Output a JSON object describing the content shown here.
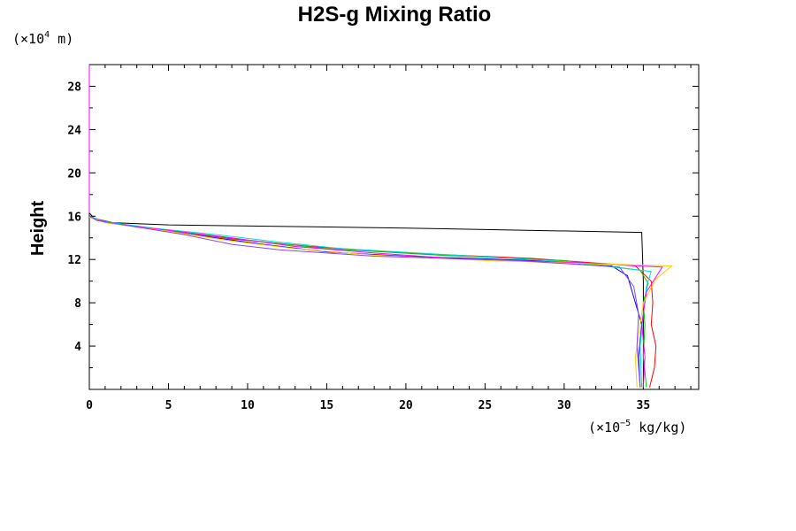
{
  "chart_data": {
    "type": "line",
    "title": "H2S-g Mixing Ratio",
    "ylabel": "Height",
    "y_unit": {
      "prefix": "(×10",
      "exponent": "4",
      "suffix": " m)"
    },
    "x_unit": {
      "prefix": "(×10",
      "exponent": "−5",
      "suffix": " kg/kg)"
    },
    "xlim": [
      0,
      38.5
    ],
    "ylim": [
      0,
      30
    ],
    "x_ticks": [
      "0",
      "5",
      "10",
      "15",
      "20",
      "25",
      "30",
      "35"
    ],
    "y_ticks": [
      "4",
      "8",
      "12",
      "16",
      "20",
      "24",
      "28"
    ],
    "series": [
      {
        "color": "#000000",
        "points": [
          [
            35.0,
            0.2
          ],
          [
            35.0,
            10.0
          ],
          [
            34.9,
            14.5
          ],
          [
            20,
            14.9
          ],
          [
            5,
            15.2
          ],
          [
            1.5,
            15.4
          ],
          [
            0.3,
            15.8
          ],
          [
            0,
            16.3
          ]
        ]
      },
      {
        "color": "#ff0000",
        "points": [
          [
            35.4,
            0.2
          ],
          [
            35.7,
            2
          ],
          [
            35.8,
            4
          ],
          [
            35.5,
            6
          ],
          [
            35.6,
            8
          ],
          [
            35.5,
            10.0
          ],
          [
            34.5,
            11.4
          ],
          [
            28,
            12.1
          ],
          [
            20,
            12.6
          ],
          [
            14,
            13.2
          ],
          [
            9,
            13.9
          ],
          [
            5,
            14.7
          ],
          [
            1,
            15.4
          ],
          [
            0,
            16.0
          ]
        ]
      },
      {
        "color": "#0000ff",
        "points": [
          [
            34.8,
            0.2
          ],
          [
            34.7,
            3
          ],
          [
            34.9,
            6
          ],
          [
            34.4,
            8.5
          ],
          [
            34,
            10.5
          ],
          [
            33.0,
            11.4
          ],
          [
            28,
            11.9
          ],
          [
            20,
            12.3
          ],
          [
            15,
            12.7
          ],
          [
            11,
            13.4
          ],
          [
            7,
            14.2
          ],
          [
            3,
            15.0
          ],
          [
            0.5,
            15.6
          ],
          [
            0,
            16.0
          ]
        ]
      },
      {
        "color": "#00cc00",
        "points": [
          [
            35.2,
            0.2
          ],
          [
            35.0,
            3
          ],
          [
            35.1,
            6
          ],
          [
            35.0,
            8
          ],
          [
            35.3,
            9.8
          ],
          [
            34.8,
            11.0
          ],
          [
            30,
            11.9
          ],
          [
            22,
            12.4
          ],
          [
            15,
            13.0
          ],
          [
            10,
            13.8
          ],
          [
            6,
            14.5
          ],
          [
            2,
            15.2
          ],
          [
            0,
            15.9
          ]
        ]
      },
      {
        "color": "#00dddd",
        "points": [
          [
            34.9,
            0.2
          ],
          [
            34.8,
            4
          ],
          [
            35.0,
            7
          ],
          [
            35.2,
            9.5
          ],
          [
            35.5,
            10.9
          ],
          [
            30,
            11.8
          ],
          [
            22,
            12.5
          ],
          [
            16,
            13.0
          ],
          [
            12,
            13.6
          ],
          [
            8,
            14.3
          ],
          [
            4,
            14.9
          ],
          [
            1,
            15.5
          ],
          [
            0,
            16.0
          ]
        ]
      },
      {
        "color": "#ff00ff",
        "points": [
          [
            35.0,
            0.2
          ],
          [
            35.1,
            3
          ],
          [
            34.9,
            6
          ],
          [
            35.2,
            9
          ],
          [
            36.2,
            11.3
          ],
          [
            31,
            11.7
          ],
          [
            23,
            12.1
          ],
          [
            18,
            12.6
          ],
          [
            13,
            13.2
          ],
          [
            9,
            14.0
          ],
          [
            5,
            14.7
          ],
          [
            1.5,
            15.3
          ],
          [
            0,
            15.9
          ]
        ]
      },
      {
        "color": "#ffcc00",
        "points": [
          [
            34.6,
            0.2
          ],
          [
            34.5,
            3
          ],
          [
            34.8,
            6
          ],
          [
            35.0,
            8
          ],
          [
            35.8,
            10.2
          ],
          [
            36.8,
            11.4
          ],
          [
            32,
            11.6
          ],
          [
            25,
            11.9
          ],
          [
            18,
            12.4
          ],
          [
            13,
            13.0
          ],
          [
            9,
            13.7
          ],
          [
            5,
            14.6
          ],
          [
            1,
            15.4
          ],
          [
            0,
            15.9
          ]
        ]
      },
      {
        "color": "#8844ff",
        "points": [
          [
            34.8,
            0.2
          ],
          [
            34.6,
            4
          ],
          [
            34.7,
            7
          ],
          [
            34.4,
            9.5
          ],
          [
            33.5,
            11.3
          ],
          [
            27,
            11.9
          ],
          [
            18,
            12.3
          ],
          [
            12,
            12.9
          ],
          [
            9,
            13.4
          ],
          [
            6,
            14.3
          ],
          [
            3,
            15.0
          ],
          [
            0.5,
            15.6
          ],
          [
            0,
            16.0
          ]
        ]
      }
    ]
  }
}
